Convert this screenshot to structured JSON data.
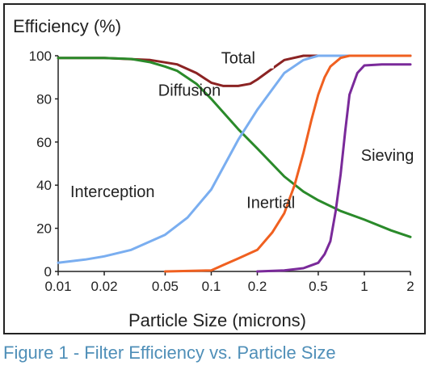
{
  "caption": "Figure 1 - Filter Efficiency vs. Particle Size",
  "chart_data": {
    "type": "line",
    "title": "",
    "ylabel": "Efficiency (%)",
    "xlabel": "Particle Size (microns)",
    "xscale": "log",
    "xlim": [
      0.01,
      2
    ],
    "ylim": [
      0,
      100
    ],
    "xticks": [
      0.01,
      0.02,
      0.05,
      0.1,
      0.2,
      0.5,
      1,
      2
    ],
    "xtick_labels": [
      "0.01",
      "0.02",
      "0.05",
      "0.1",
      "0.2",
      "0.5",
      "1",
      "2"
    ],
    "yticks": [
      0,
      20,
      40,
      60,
      80,
      100
    ],
    "ytick_labels": [
      "0",
      "20",
      "40",
      "60",
      "80",
      "100"
    ],
    "grid": false,
    "legend": "none",
    "series": [
      {
        "name": "Total",
        "color": "#8b2323",
        "label_at": [
          0.15,
          99
        ],
        "x": [
          0.01,
          0.02,
          0.04,
          0.06,
          0.08,
          0.1,
          0.12,
          0.15,
          0.18,
          0.2,
          0.25,
          0.3,
          0.4,
          0.5,
          1,
          2
        ],
        "y": [
          99,
          99,
          98,
          96,
          92,
          87.5,
          86,
          86,
          87,
          89,
          94,
          98,
          100,
          100,
          100,
          100
        ]
      },
      {
        "name": "Diffusion",
        "color": "#2a8a2a",
        "label_at": [
          0.045,
          84
        ],
        "x": [
          0.01,
          0.02,
          0.03,
          0.04,
          0.05,
          0.06,
          0.08,
          0.1,
          0.15,
          0.2,
          0.3,
          0.4,
          0.5,
          0.7,
          1,
          1.5,
          2
        ],
        "y": [
          99,
          99,
          98.5,
          97,
          95,
          93,
          87,
          80,
          66,
          57,
          44,
          37,
          33,
          28,
          24,
          19,
          16
        ]
      },
      {
        "name": "Interception",
        "color": "#7aaef0",
        "label_at": [
          0.012,
          37
        ],
        "x": [
          0.01,
          0.015,
          0.02,
          0.03,
          0.05,
          0.07,
          0.1,
          0.15,
          0.2,
          0.3,
          0.4,
          0.5,
          0.6,
          1,
          2
        ],
        "y": [
          4,
          5.5,
          7,
          10,
          17,
          25,
          38,
          61,
          75,
          92,
          98,
          100,
          100,
          100,
          100
        ]
      },
      {
        "name": "Inertial",
        "color": "#f06020",
        "label_at": [
          0.17,
          32
        ],
        "x": [
          0.05,
          0.1,
          0.12,
          0.15,
          0.2,
          0.25,
          0.3,
          0.35,
          0.4,
          0.45,
          0.5,
          0.55,
          0.6,
          0.7,
          0.8,
          1,
          2
        ],
        "y": [
          0,
          0.5,
          3,
          6,
          10,
          18,
          27,
          40,
          55,
          70,
          82,
          90,
          95,
          99,
          100,
          100,
          100
        ]
      },
      {
        "name": "Sieving",
        "color": "#7a2a9a",
        "label_at": [
          0.95,
          54
        ],
        "x": [
          0.2,
          0.3,
          0.4,
          0.5,
          0.55,
          0.6,
          0.65,
          0.7,
          0.75,
          0.8,
          0.9,
          1,
          1.3,
          2
        ],
        "y": [
          0,
          0.5,
          1.5,
          4,
          8,
          14,
          28,
          45,
          65,
          82,
          92,
          95.5,
          96,
          96
        ]
      }
    ]
  }
}
